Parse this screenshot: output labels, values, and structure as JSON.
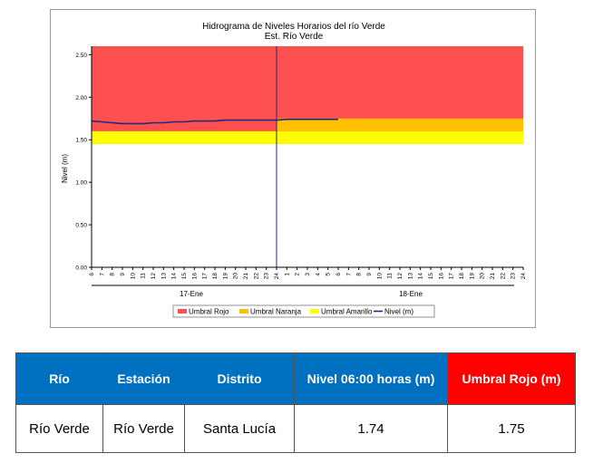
{
  "chart_data": {
    "type": "line",
    "title": "Hidrograma de Niveles Horarios del río Verde",
    "subtitle": "Est. Río Verde",
    "ylabel": "Nivel (m)",
    "ylim": [
      0,
      2.6
    ],
    "yticks": [
      "0.00",
      "0.50",
      "1.00",
      "1.50",
      "2.00",
      "2.50"
    ],
    "x_hour_labels": [
      "6",
      "7",
      "8",
      "9",
      "10",
      "11",
      "12",
      "13",
      "14",
      "15",
      "16",
      "17",
      "18",
      "19",
      "20",
      "21",
      "22",
      "23",
      "24",
      "1",
      "2",
      "3",
      "4",
      "5",
      "6",
      "7",
      "8",
      "9",
      "10",
      "11",
      "12",
      "13",
      "14",
      "15",
      "16",
      "17",
      "18",
      "19",
      "20",
      "21",
      "22",
      "23",
      "24"
    ],
    "day_labels": [
      "17-Ene",
      "18-Ene"
    ],
    "current_time_index": 18,
    "thresholds": [
      {
        "name": "Umbral Rojo",
        "value": 1.75,
        "color": "#ff5050",
        "note_start_index": 18,
        "earlier_value": 2.6
      },
      {
        "name": "Umbral Naranja",
        "value": 1.6,
        "color": "#ffc000"
      },
      {
        "name": "Umbral Amarillo",
        "value": 1.45,
        "color": "#ffff00"
      }
    ],
    "series": [
      {
        "name": "Nivel (m)",
        "color": "#1f2a7a",
        "x_index": [
          0,
          1,
          2,
          3,
          4,
          5,
          6,
          7,
          8,
          9,
          10,
          11,
          12,
          13,
          14,
          15,
          16,
          17,
          18,
          19,
          20,
          21,
          22,
          23,
          24
        ],
        "values": [
          1.72,
          1.71,
          1.7,
          1.69,
          1.69,
          1.69,
          1.7,
          1.7,
          1.71,
          1.71,
          1.72,
          1.72,
          1.72,
          1.73,
          1.73,
          1.73,
          1.73,
          1.73,
          1.73,
          1.74,
          1.74,
          1.74,
          1.74,
          1.74,
          1.74
        ]
      }
    ],
    "legend_position": "bottom"
  },
  "table": {
    "headers": [
      "Río",
      "Estación",
      "Distrito",
      "Nivel  06:00 horas (m)",
      "Umbral Rojo (m)"
    ],
    "row": [
      "Río Verde",
      "Río Verde",
      "Santa Lucía",
      "1.74",
      "1.75"
    ]
  },
  "colors": {
    "header_blue": "#0070c0",
    "header_red": "#ff0000"
  }
}
